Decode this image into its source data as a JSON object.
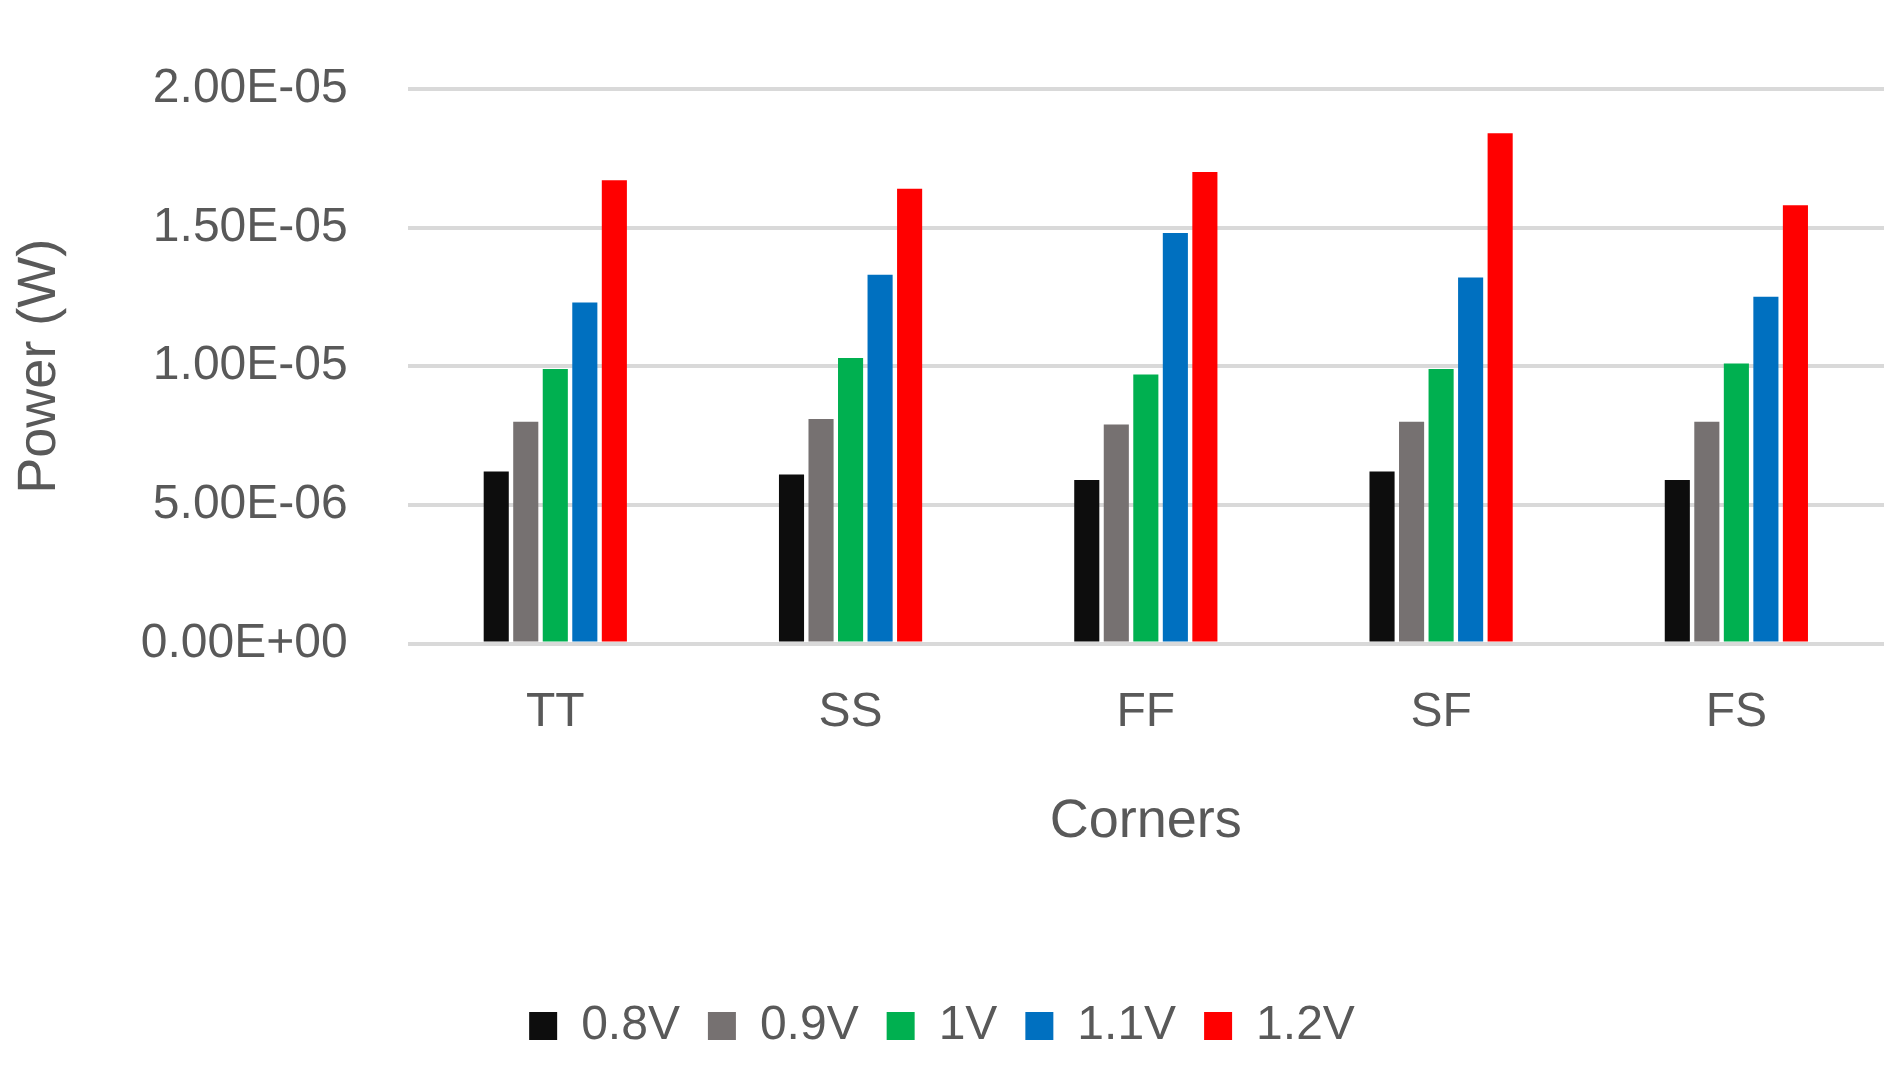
{
  "chart_data": {
    "type": "bar",
    "xlabel": "Corners",
    "ylabel": "Power (W)",
    "categories": [
      "TT",
      "SS",
      "FF",
      "SF",
      "FS"
    ],
    "series": [
      {
        "name": "0.8V",
        "color": "#0d0d0d",
        "values": [
          6.2e-06,
          6.1e-06,
          5.9e-06,
          6.2e-06,
          5.9e-06
        ]
      },
      {
        "name": "0.9V",
        "color": "#767171",
        "values": [
          8e-06,
          8.1e-06,
          7.9e-06,
          8e-06,
          8e-06
        ]
      },
      {
        "name": "1V",
        "color": "#00b050",
        "values": [
          9.9e-06,
          1.03e-05,
          9.7e-06,
          9.9e-06,
          1.01e-05
        ]
      },
      {
        "name": "1.1V",
        "color": "#0070c0",
        "values": [
          1.23e-05,
          1.33e-05,
          1.48e-05,
          1.32e-05,
          1.25e-05
        ]
      },
      {
        "name": "1.2V",
        "color": "#ff0000",
        "values": [
          1.67e-05,
          1.64e-05,
          1.7e-05,
          1.84e-05,
          1.58e-05
        ]
      }
    ],
    "ylim": [
      0,
      2e-05
    ],
    "yticks": [
      {
        "value": 0,
        "label": "0.00E+00"
      },
      {
        "value": 5e-06,
        "label": "5.00E-06"
      },
      {
        "value": 1e-05,
        "label": "1.00E-05"
      },
      {
        "value": 1.5e-05,
        "label": "1.50E-05"
      },
      {
        "value": 2e-05,
        "label": "2.00E-05"
      }
    ],
    "grid": "y",
    "legend": "bottom"
  }
}
